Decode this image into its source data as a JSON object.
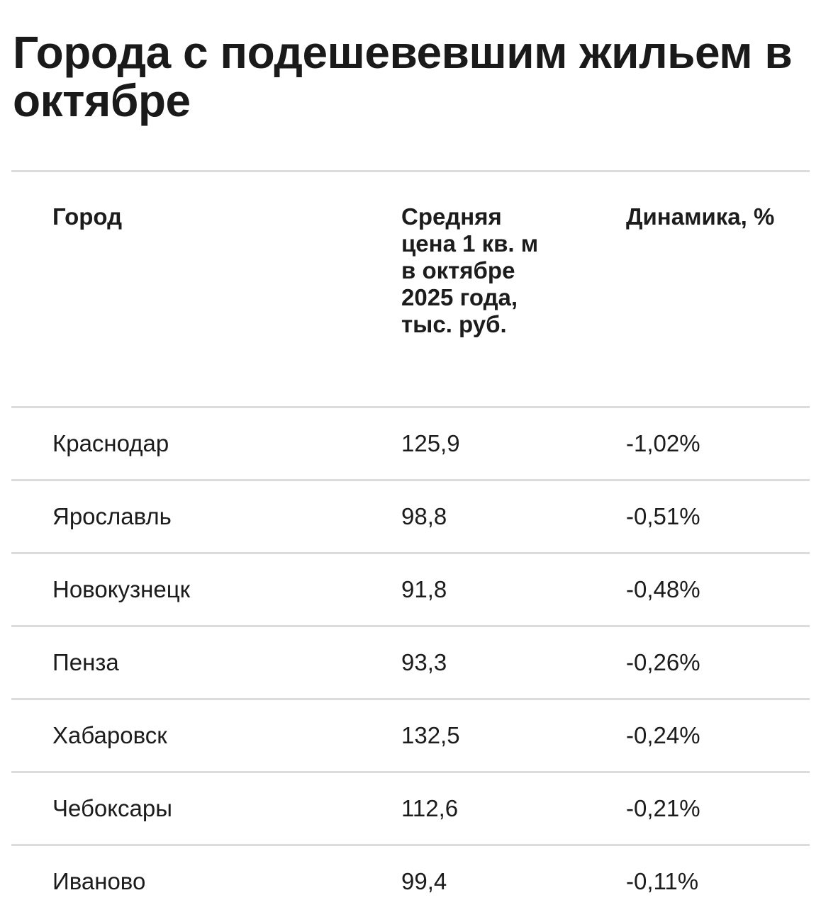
{
  "title": "Города с подешевевшим жильем в октябре",
  "table": {
    "headers": {
      "city": "Город",
      "price": "Средняя цена 1 кв. м в октябре 2025 года, тыс. руб.",
      "dynamics": "Динамика, %"
    },
    "rows": [
      {
        "city": "Краснодар",
        "price": "125,9",
        "dynamics": "-1,02%"
      },
      {
        "city": "Ярославль",
        "price": "98,8",
        "dynamics": "-0,51%"
      },
      {
        "city": "Новокузнецк",
        "price": "91,8",
        "dynamics": "-0,48%"
      },
      {
        "city": "Пенза",
        "price": "93,3",
        "dynamics": "-0,26%"
      },
      {
        "city": "Хабаровск",
        "price": "132,5",
        "dynamics": "-0,24%"
      },
      {
        "city": "Чебоксары",
        "price": "112,6",
        "dynamics": "-0,21%"
      },
      {
        "city": "Иваново",
        "price": "99,4",
        "dynamics": "-0,11%"
      }
    ]
  },
  "colors": {
    "text": "#1c1c1c",
    "divider": "#dcdcdc",
    "background": "#ffffff"
  }
}
